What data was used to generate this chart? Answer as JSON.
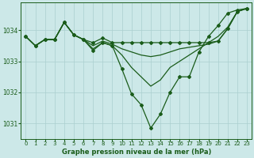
{
  "title": "Graphe pression niveau de la mer (hPa)",
  "bg_color": "#cce8e8",
  "grid_color": "#aacfcf",
  "line_color": "#1a5c1a",
  "marker_color": "#1a5c1a",
  "xlim": [
    -0.5,
    23.5
  ],
  "ylim": [
    1030.5,
    1034.9
  ],
  "yticks": [
    1031,
    1032,
    1033,
    1034
  ],
  "series": [
    [
      1033.8,
      1033.5,
      1033.7,
      1033.7,
      1034.25,
      1033.85,
      1033.7,
      1033.6,
      1033.75,
      1033.6,
      1033.6,
      1033.6,
      1033.6,
      1033.6,
      1033.6,
      1033.6,
      1033.6,
      1033.6,
      1033.6,
      1033.6,
      1033.65,
      1034.05,
      1034.6,
      1034.7
    ],
    [
      1033.8,
      1033.5,
      1033.7,
      1033.7,
      1034.25,
      1033.85,
      1033.7,
      1033.5,
      1033.65,
      1033.55,
      1033.4,
      1033.3,
      1033.2,
      1033.15,
      1033.2,
      1033.3,
      1033.4,
      1033.45,
      1033.5,
      1033.55,
      1033.65,
      1034.05,
      1034.6,
      1034.7
    ],
    [
      1033.8,
      1033.5,
      1033.7,
      1033.7,
      1034.25,
      1033.85,
      1033.7,
      1033.4,
      1033.6,
      1033.5,
      1033.2,
      1032.8,
      1032.5,
      1032.2,
      1032.4,
      1032.8,
      1033.0,
      1033.2,
      1033.4,
      1033.6,
      1033.8,
      1034.1,
      1034.6,
      1034.7
    ],
    [
      1033.8,
      1033.5,
      1033.7,
      1033.7,
      1034.25,
      1033.85,
      1033.7,
      1033.35,
      1033.6,
      1033.5,
      1032.75,
      1031.95,
      1031.6,
      1030.85,
      1031.3,
      1032.0,
      1032.5,
      1032.5,
      1033.3,
      1033.8,
      1034.15,
      1034.55,
      1034.65,
      1034.7
    ]
  ]
}
